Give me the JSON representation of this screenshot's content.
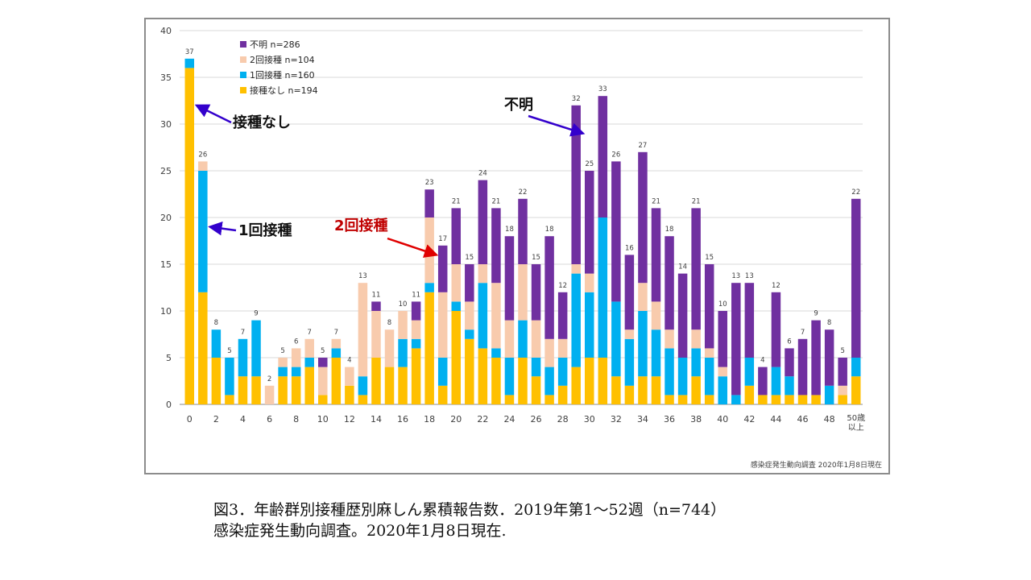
{
  "figure": {
    "source_note": "感染症発生動向調査 2020年1月8日現在"
  },
  "caption": {
    "line1": "図3．年齢群別接種歴別麻しん累積報告数．2019年第1～52週（n=744）",
    "line2": "感染症発生動向調査。2020年1月8日現在."
  },
  "chart_data": {
    "type": "bar",
    "stacked": true,
    "categories": [
      "0",
      "1",
      "2",
      "3",
      "4",
      "5",
      "6",
      "7",
      "8",
      "9",
      "10",
      "11",
      "12",
      "13",
      "14",
      "15",
      "16",
      "17",
      "18",
      "19",
      "20",
      "21",
      "22",
      "23",
      "24",
      "25",
      "26",
      "27",
      "28",
      "29",
      "30",
      "31",
      "32",
      "33",
      "34",
      "35",
      "36",
      "37",
      "38",
      "39",
      "40",
      "41",
      "42",
      "43",
      "44",
      "45",
      "46",
      "47",
      "48",
      "49",
      "50歳以上"
    ],
    "x_tick_labels": [
      "0",
      "2",
      "4",
      "6",
      "8",
      "10",
      "12",
      "14",
      "16",
      "18",
      "20",
      "22",
      "24",
      "26",
      "28",
      "30",
      "32",
      "34",
      "36",
      "38",
      "40",
      "42",
      "44",
      "46",
      "48"
    ],
    "last_tick_label": [
      "50歳",
      "以上"
    ],
    "ylim": [
      0,
      40
    ],
    "yticks": [
      0,
      5,
      10,
      15,
      20,
      25,
      30,
      35,
      40
    ],
    "grid": true,
    "legend_position": "top-left",
    "series": [
      {
        "name": "接種なし n=194",
        "color": "#FFC000",
        "values": [
          36,
          12,
          5,
          1,
          3,
          3,
          0,
          3,
          3,
          4,
          1,
          5,
          2,
          1,
          5,
          4,
          4,
          6,
          12,
          2,
          10,
          7,
          6,
          5,
          1,
          5,
          3,
          1,
          2,
          4,
          5,
          5,
          3,
          2,
          3,
          3,
          1,
          1,
          3,
          1,
          0,
          0,
          2,
          1,
          1,
          1,
          1,
          1,
          0,
          1,
          3
        ]
      },
      {
        "name": "1回接種 n=160",
        "color": "#00B0F0",
        "values": [
          1,
          13,
          3,
          4,
          4,
          6,
          0,
          1,
          1,
          1,
          0,
          1,
          0,
          2,
          0,
          0,
          3,
          1,
          1,
          3,
          1,
          1,
          7,
          1,
          4,
          4,
          2,
          3,
          3,
          10,
          7,
          15,
          8,
          5,
          7,
          5,
          5,
          4,
          3,
          4,
          3,
          1,
          3,
          0,
          3,
          2,
          0,
          0,
          2,
          0,
          2
        ]
      },
      {
        "name": "2回接種 n=104",
        "color": "#F8CBAD",
        "values": [
          0,
          1,
          0,
          0,
          0,
          0,
          2,
          1,
          2,
          2,
          3,
          1,
          2,
          10,
          5,
          4,
          3,
          2,
          7,
          7,
          4,
          3,
          2,
          7,
          4,
          6,
          4,
          3,
          2,
          1,
          2,
          0,
          0,
          1,
          3,
          3,
          2,
          0,
          2,
          1,
          1,
          0,
          0,
          0,
          0,
          0,
          0,
          0,
          0,
          1,
          0
        ]
      },
      {
        "name": "不明 n=286",
        "color": "#7030A0",
        "values": [
          0,
          0,
          0,
          0,
          0,
          0,
          0,
          0,
          0,
          0,
          1,
          0,
          0,
          0,
          1,
          0,
          0,
          2,
          3,
          5,
          6,
          4,
          9,
          8,
          9,
          7,
          6,
          11,
          5,
          17,
          11,
          13,
          15,
          8,
          14,
          10,
          10,
          9,
          13,
          9,
          6,
          12,
          8,
          3,
          8,
          3,
          6,
          8,
          6,
          3,
          17
        ]
      }
    ],
    "totals": [
      37,
      26,
      8,
      5,
      7,
      9,
      2,
      5,
      6,
      7,
      5,
      7,
      4,
      13,
      11,
      8,
      10,
      11,
      23,
      17,
      21,
      15,
      24,
      21,
      18,
      22,
      15,
      18,
      12,
      32,
      25,
      33,
      26,
      16,
      27,
      21,
      18,
      14,
      21,
      15,
      10,
      13,
      13,
      4,
      12,
      6,
      7,
      9,
      8,
      5,
      22
    ],
    "annotations": [
      {
        "text": "接種なし",
        "target_index": 0,
        "target_value": 32,
        "color": "#3300CC",
        "text_color": "#111111"
      },
      {
        "text": "1回接種",
        "target_index": 1,
        "target_value": 19,
        "color": "#3300CC",
        "text_color": "#111111"
      },
      {
        "text": "2回接種",
        "target_index": 18,
        "target_value": 16,
        "color": "#E00000",
        "text_color": "#C00000"
      },
      {
        "text": "不明",
        "target_index": 29,
        "target_value": 29,
        "color": "#3300CC",
        "text_color": "#111111"
      }
    ]
  }
}
